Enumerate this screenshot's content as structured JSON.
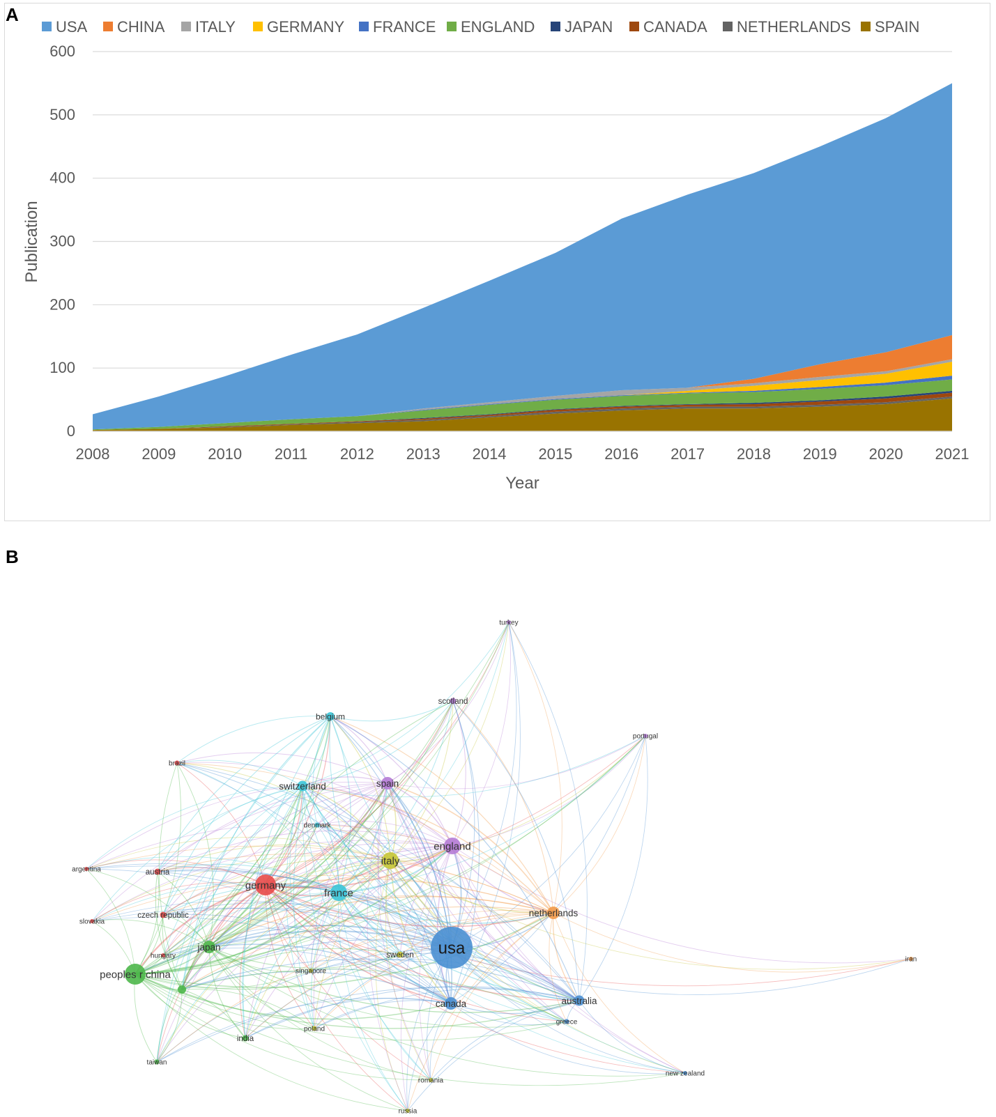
{
  "panels": {
    "a": "A",
    "b": "B"
  },
  "chart_data": [
    {
      "type": "area",
      "stacked": true,
      "title": "",
      "xlabel": "Year",
      "ylabel": "Publication",
      "ylim": [
        0,
        600
      ],
      "yticks": [
        0,
        100,
        200,
        300,
        400,
        500,
        600
      ],
      "grid": true,
      "legend_position": "top",
      "categories": [
        "2008",
        "2009",
        "2010",
        "2011",
        "2012",
        "2013",
        "2014",
        "2015",
        "2016",
        "2017",
        "2018",
        "2019",
        "2020",
        "2021"
      ],
      "series": [
        {
          "name": "SPAIN",
          "color": "#997300",
          "values": [
            2,
            4,
            6,
            10,
            13,
            16,
            22,
            28,
            33,
            36,
            36,
            39,
            43,
            52
          ]
        },
        {
          "name": "NETHERLANDS",
          "color": "#636363",
          "values": [
            0,
            0,
            1,
            1,
            2,
            2,
            2,
            3,
            3,
            3,
            3,
            3,
            3,
            3
          ]
        },
        {
          "name": "CANADA",
          "color": "#9e480e",
          "values": [
            0,
            0,
            1,
            1,
            1,
            2,
            2,
            3,
            3,
            3,
            4,
            5,
            6,
            6
          ]
        },
        {
          "name": "JAPAN",
          "color": "#264478",
          "values": [
            0,
            0,
            0,
            0,
            0,
            1,
            1,
            1,
            1,
            1,
            2,
            2,
            3,
            3
          ]
        },
        {
          "name": "ENGLAND",
          "color": "#70ad47",
          "values": [
            1,
            3,
            5,
            7,
            8,
            12,
            15,
            15,
            16,
            17,
            17,
            18,
            18,
            18
          ]
        },
        {
          "name": "FRANCE",
          "color": "#4472c4",
          "values": [
            0,
            0,
            0,
            0,
            0,
            1,
            1,
            1,
            1,
            1,
            2,
            3,
            4,
            6
          ]
        },
        {
          "name": "GERMANY",
          "color": "#ffc000",
          "values": [
            0,
            0,
            0,
            0,
            0,
            0,
            0,
            0,
            0,
            3,
            8,
            11,
            14,
            22
          ]
        },
        {
          "name": "ITALY",
          "color": "#a5a5a5",
          "values": [
            0,
            0,
            0,
            0,
            0,
            2,
            3,
            5,
            8,
            5,
            4,
            5,
            4,
            4
          ]
        },
        {
          "name": "CHINA",
          "color": "#ed7d31",
          "values": [
            0,
            0,
            0,
            0,
            0,
            0,
            0,
            0,
            0,
            0,
            7,
            20,
            30,
            38
          ]
        },
        {
          "name": "USA",
          "color": "#5b9bd5",
          "values": [
            24,
            48,
            74,
            102,
            129,
            159,
            192,
            226,
            271,
            305,
            325,
            344,
            370,
            398
          ]
        }
      ],
      "legend": [
        "USA",
        "CHINA",
        "ITALY",
        "GERMANY",
        "FRANCE",
        "ENGLAND",
        "JAPAN",
        "CANADA",
        "NETHERLANDS",
        "SPAIN"
      ]
    },
    {
      "type": "network",
      "title": "",
      "clusters": {
        "red": "#e84a4a",
        "green": "#4cb74a",
        "blue": "#4a8fd2",
        "yellow": "#c6c636",
        "purple": "#b57bd6",
        "cyan": "#3cc5d8",
        "orange": "#f29a4a"
      },
      "nodes": [
        {
          "label": "usa",
          "cluster": "blue",
          "weight": 10
        },
        {
          "label": "germany",
          "cluster": "red",
          "weight": 5
        },
        {
          "label": "peoples r china",
          "cluster": "green",
          "weight": 5
        },
        {
          "label": "italy",
          "cluster": "yellow",
          "weight": 4
        },
        {
          "label": "france",
          "cluster": "cyan",
          "weight": 4
        },
        {
          "label": "england",
          "cluster": "purple",
          "weight": 4
        },
        {
          "label": "netherlands",
          "cluster": "orange",
          "weight": 3
        },
        {
          "label": "canada",
          "cluster": "blue",
          "weight": 3
        },
        {
          "label": "japan",
          "cluster": "green",
          "weight": 3
        },
        {
          "label": "spain",
          "cluster": "purple",
          "weight": 3
        },
        {
          "label": "switzerland",
          "cluster": "cyan",
          "weight": 2.5
        },
        {
          "label": "australia",
          "cluster": "blue",
          "weight": 2.5
        },
        {
          "label": "belgium",
          "cluster": "cyan",
          "weight": 2
        },
        {
          "label": "scotland",
          "cluster": "purple",
          "weight": 1.5
        },
        {
          "label": "austria",
          "cluster": "red",
          "weight": 1.5
        },
        {
          "label": "czech republic",
          "cluster": "red",
          "weight": 1.5
        },
        {
          "label": "sweden",
          "cluster": "yellow",
          "weight": 1.5
        },
        {
          "label": "denmark",
          "cluster": "cyan",
          "weight": 1.2
        },
        {
          "label": "brazil",
          "cluster": "red",
          "weight": 1.2
        },
        {
          "label": "argentina",
          "cluster": "red",
          "weight": 1
        },
        {
          "label": "slovakia",
          "cluster": "red",
          "weight": 1
        },
        {
          "label": "hungary",
          "cluster": "red",
          "weight": 1
        },
        {
          "label": "singapore",
          "cluster": "yellow",
          "weight": 1
        },
        {
          "label": "poland",
          "cluster": "yellow",
          "weight": 1.2
        },
        {
          "label": "india",
          "cluster": "green",
          "weight": 1.5
        },
        {
          "label": "taiwan",
          "cluster": "green",
          "weight": 1.2
        },
        {
          "label": "romania",
          "cluster": "yellow",
          "weight": 1
        },
        {
          "label": "russia",
          "cluster": "yellow",
          "weight": 1
        },
        {
          "label": "greece",
          "cluster": "blue",
          "weight": 1.2
        },
        {
          "label": "new zealand",
          "cluster": "blue",
          "weight": 1
        },
        {
          "label": "iran",
          "cluster": "orange",
          "weight": 1
        },
        {
          "label": "portugal",
          "cluster": "purple",
          "weight": 1
        },
        {
          "label": "turkey",
          "cluster": "purple",
          "weight": 1
        },
        {
          "label": "",
          "cluster": "green",
          "weight": 2
        }
      ]
    }
  ]
}
